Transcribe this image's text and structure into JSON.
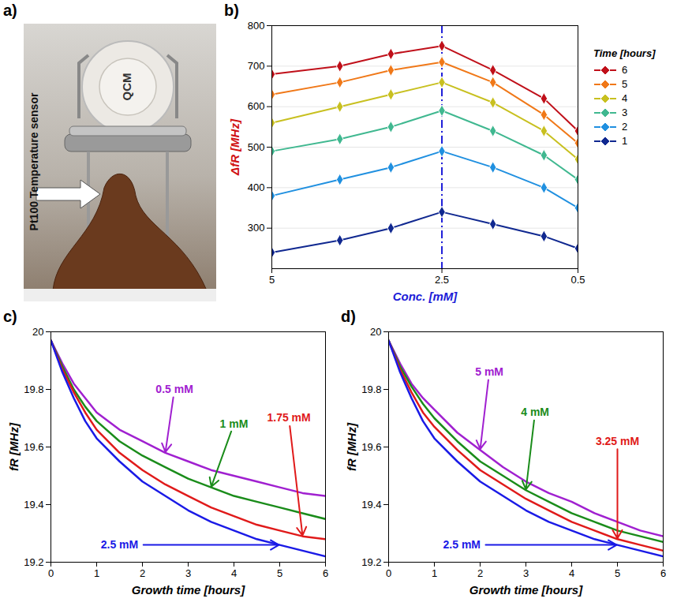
{
  "photo": {
    "letter": "a)",
    "labels": {
      "crystal": "QCM",
      "sensor": "Pt100 Temperature sensor"
    }
  },
  "chart_data": [
    {
      "letter": "b)",
      "type": "line",
      "marker": "diamond",
      "grid": true,
      "legend": "right",
      "xlabel": "Conc. [mM]",
      "ylabel": "ΔfR [MHz]",
      "legend_title": "Time [hours]",
      "x": [
        0.5,
        1,
        1.75,
        2.5,
        3.25,
        4,
        5
      ],
      "xlim": [
        5,
        0.5
      ],
      "xticks": [
        5,
        2.5,
        0.5
      ],
      "ylim": [
        200,
        800
      ],
      "yticks": [
        300,
        400,
        500,
        600,
        700,
        800
      ],
      "highlight_x": 2.5,
      "series": [
        {
          "name": "6",
          "color": "#c0101a",
          "values": [
            540,
            620,
            690,
            750,
            730,
            700,
            680
          ]
        },
        {
          "name": "5",
          "color": "#f07818",
          "values": [
            510,
            580,
            660,
            710,
            690,
            660,
            630
          ]
        },
        {
          "name": "4",
          "color": "#c8c020",
          "values": [
            470,
            540,
            610,
            660,
            630,
            600,
            560
          ]
        },
        {
          "name": "3",
          "color": "#40b890",
          "values": [
            420,
            480,
            540,
            590,
            550,
            520,
            490
          ]
        },
        {
          "name": "2",
          "color": "#2090e0",
          "values": [
            350,
            400,
            450,
            490,
            450,
            420,
            380
          ]
        },
        {
          "name": "1",
          "color": "#102890",
          "values": [
            250,
            280,
            310,
            340,
            300,
            270,
            240
          ]
        }
      ]
    },
    {
      "letter": "c)",
      "type": "line",
      "grid": false,
      "xlabel": "Growth time [hours]",
      "ylabel": "fR [MHz]",
      "x": [
        0,
        0.25,
        0.5,
        0.75,
        1,
        1.5,
        2,
        2.5,
        3,
        3.5,
        4,
        4.5,
        5,
        5.5,
        6
      ],
      "xlim": [
        0,
        6
      ],
      "xticks": [
        0,
        1,
        2,
        3,
        4,
        5,
        6
      ],
      "ylim": [
        19.2,
        20
      ],
      "yticks": [
        19.2,
        19.4,
        19.6,
        19.8,
        20
      ],
      "series": [
        {
          "name": "0.5 mM",
          "color": "#a020d0",
          "values": [
            19.97,
            19.89,
            19.82,
            19.77,
            19.72,
            19.66,
            19.62,
            19.58,
            19.55,
            19.52,
            19.5,
            19.48,
            19.46,
            19.44,
            19.43
          ]
        },
        {
          "name": "1 mM",
          "color": "#1a8c1a",
          "values": [
            19.97,
            19.88,
            19.8,
            19.74,
            19.69,
            19.62,
            19.57,
            19.53,
            19.49,
            19.46,
            19.43,
            19.41,
            19.39,
            19.37,
            19.35
          ]
        },
        {
          "name": "1.75 mM",
          "color": "#e01a1a",
          "values": [
            19.97,
            19.87,
            19.79,
            19.72,
            19.66,
            19.58,
            19.52,
            19.47,
            19.43,
            19.39,
            19.36,
            19.33,
            19.31,
            19.29,
            19.28
          ]
        },
        {
          "name": "2.5 mM",
          "color": "#1a1ae6",
          "values": [
            19.97,
            19.86,
            19.77,
            19.69,
            19.63,
            19.55,
            19.48,
            19.43,
            19.38,
            19.34,
            19.31,
            19.28,
            19.26,
            19.24,
            19.22
          ]
        }
      ],
      "annotations": [
        {
          "series": "0.5 mM",
          "x": 2.7,
          "y": 19.8,
          "arrow_x": 2.5
        },
        {
          "series": "1 mM",
          "x": 4,
          "y": 19.68,
          "arrow_x": 3.5
        },
        {
          "series": "1.75 mM",
          "x": 5.2,
          "y": 19.7,
          "arrow_x": 5.5
        },
        {
          "series": "2.5 mM",
          "x": 1.5,
          "y": 19.26,
          "arrow_x": 5
        }
      ]
    },
    {
      "letter": "d)",
      "type": "line",
      "grid": false,
      "xlabel": "Growth time [hours]",
      "ylabel": "fR [MHz]",
      "x": [
        0,
        0.25,
        0.5,
        0.75,
        1,
        1.5,
        2,
        2.5,
        3,
        3.5,
        4,
        4.5,
        5,
        5.5,
        6
      ],
      "xlim": [
        0,
        6
      ],
      "xticks": [
        0,
        1,
        2,
        3,
        4,
        5,
        6
      ],
      "ylim": [
        19.2,
        20
      ],
      "yticks": [
        19.2,
        19.4,
        19.6,
        19.8,
        20
      ],
      "series": [
        {
          "name": "5 mM",
          "color": "#a020d0",
          "values": [
            19.97,
            19.89,
            19.82,
            19.77,
            19.73,
            19.65,
            19.59,
            19.53,
            19.48,
            19.44,
            19.41,
            19.37,
            19.34,
            19.31,
            19.29
          ]
        },
        {
          "name": "4 mM",
          "color": "#1a8c1a",
          "values": [
            19.97,
            19.88,
            19.81,
            19.75,
            19.7,
            19.62,
            19.55,
            19.5,
            19.45,
            19.41,
            19.37,
            19.34,
            19.31,
            19.29,
            19.27
          ]
        },
        {
          "name": "3.25 mM",
          "color": "#e01a1a",
          "values": [
            19.97,
            19.87,
            19.79,
            19.72,
            19.67,
            19.59,
            19.52,
            19.47,
            19.42,
            19.38,
            19.34,
            19.31,
            19.28,
            19.26,
            19.24
          ]
        },
        {
          "name": "2.5 mM",
          "color": "#1a1ae6",
          "values": [
            19.97,
            19.86,
            19.77,
            19.69,
            19.63,
            19.55,
            19.48,
            19.43,
            19.38,
            19.34,
            19.31,
            19.28,
            19.26,
            19.24,
            19.22
          ]
        }
      ],
      "annotations": [
        {
          "series": "5 mM",
          "x": 2.2,
          "y": 19.86,
          "arrow_x": 2
        },
        {
          "series": "4 mM",
          "x": 3.2,
          "y": 19.72,
          "arrow_x": 3
        },
        {
          "series": "3.25 mM",
          "x": 5,
          "y": 19.62,
          "arrow_x": 5
        },
        {
          "series": "2.5 mM",
          "x": 1.6,
          "y": 19.26,
          "arrow_x": 5
        }
      ]
    }
  ]
}
